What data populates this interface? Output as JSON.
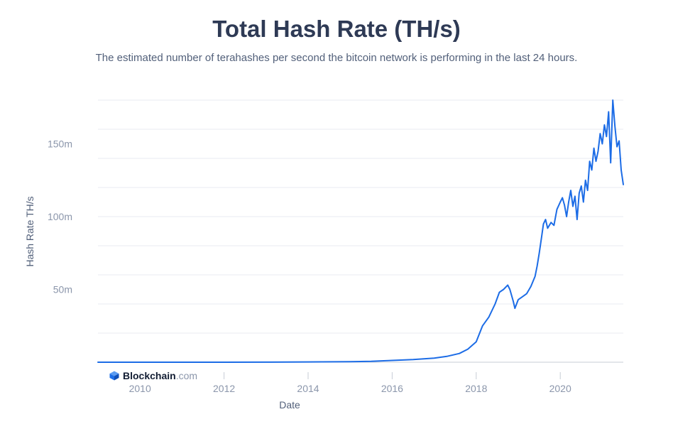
{
  "header": {
    "title": "Total Hash Rate (TH/s)",
    "subtitle": "The estimated number of terahashes per second the bitcoin network is performing in the last 24 hours."
  },
  "watermark": {
    "brand": "Blockchain",
    "tld": ".com",
    "icon": "blockchain-logo-icon",
    "color": "#1e6fe8"
  },
  "colors": {
    "line": "#1c6ce6",
    "grid": "#e8ebf0",
    "axis": "#c7ccd6"
  },
  "chart_data": {
    "type": "line",
    "title": "Total Hash Rate (TH/s)",
    "xlabel": "Date",
    "ylabel": "Hash Rate TH/s",
    "x_ticks": [
      2010,
      2012,
      2014,
      2016,
      2018,
      2020
    ],
    "x_tick_labels": [
      "2010",
      "2012",
      "2014",
      "2016",
      "2018",
      "2020"
    ],
    "y_ticks": [
      50,
      100,
      150
    ],
    "y_tick_labels": [
      "50m",
      "100m",
      "150m"
    ],
    "y_unit": "millions TH/s",
    "xlim": [
      2009.0,
      2021.5
    ],
    "ylim": [
      0,
      180
    ],
    "grid": true,
    "series": [
      {
        "x": [
          2009.0,
          2010.0,
          2011.0,
          2012.0,
          2013.0,
          2014.0,
          2015.0,
          2015.5,
          2016.0,
          2016.5,
          2017.0,
          2017.3,
          2017.6,
          2017.8,
          2018.0,
          2018.15,
          2018.3,
          2018.45,
          2018.55,
          2018.65,
          2018.75,
          2018.8,
          2018.88,
          2018.92,
          2019.0,
          2019.1,
          2019.2,
          2019.3,
          2019.4,
          2019.45,
          2019.5,
          2019.55,
          2019.6,
          2019.65,
          2019.7,
          2019.78,
          2019.85,
          2019.92,
          2020.0,
          2020.05,
          2020.1,
          2020.15,
          2020.2,
          2020.25,
          2020.3,
          2020.35,
          2020.4,
          2020.45,
          2020.5,
          2020.55,
          2020.6,
          2020.65,
          2020.7,
          2020.75,
          2020.8,
          2020.85,
          2020.9,
          2020.95,
          2021.0,
          2021.05,
          2021.1,
          2021.15,
          2021.2,
          2021.25,
          2021.3,
          2021.35,
          2021.4,
          2021.45,
          2021.5
        ],
        "y": [
          0,
          0,
          0.01,
          0.02,
          0.05,
          0.2,
          0.4,
          0.6,
          1.2,
          1.8,
          2.8,
          4,
          6,
          9,
          14,
          25,
          31,
          40,
          48,
          50,
          53,
          50,
          42,
          37,
          43,
          45,
          47,
          52,
          59,
          66,
          75,
          85,
          95,
          98,
          92,
          96,
          94,
          105,
          110,
          113,
          108,
          100,
          110,
          118,
          107,
          114,
          98,
          116,
          121,
          110,
          125,
          118,
          138,
          132,
          147,
          138,
          145,
          157,
          150,
          163,
          155,
          172,
          137,
          180,
          162,
          148,
          152,
          132,
          122
        ]
      }
    ]
  }
}
